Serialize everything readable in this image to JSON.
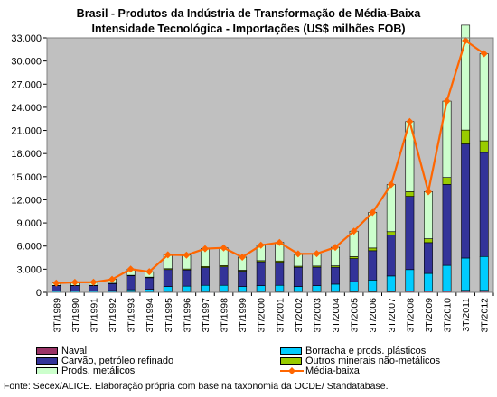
{
  "chart_data": {
    "type": "bar",
    "title": "Brasil - Produtos da Indústria de Transformação de Média-Baixa",
    "subtitle": "Intensidade Tecnológica - Importações (US$ milhões FOB)",
    "categories": [
      "3T/1989",
      "3T/1990",
      "3T/1991",
      "3T/1992",
      "3T/1993",
      "3T/1994",
      "3T/1995",
      "3T/1996",
      "3T/1997",
      "3T/1998",
      "3T/1999",
      "3T/2000",
      "3T/2001",
      "3T/2002",
      "3T/2003",
      "3T/2004",
      "3T/2005",
      "3T/2006",
      "3T/2007",
      "3T/2008",
      "3T/2009",
      "3T/2010",
      "3T/2011",
      "3T/2012"
    ],
    "y_ticks": [
      "0",
      "3.000",
      "6.000",
      "9.000",
      "12.000",
      "15.000",
      "18.000",
      "21.000",
      "24.000",
      "27.000",
      "30.000",
      "33.000"
    ],
    "ylim": [
      0,
      33000
    ],
    "stacked": true,
    "series": [
      {
        "name": "Naval",
        "color": "#993366",
        "values": [
          20,
          20,
          20,
          30,
          40,
          40,
          50,
          50,
          60,
          60,
          50,
          60,
          60,
          50,
          60,
          60,
          80,
          100,
          120,
          150,
          150,
          200,
          250,
          250
        ]
      },
      {
        "name": "Borracha e prods. plásticos",
        "color": "#00CCFF",
        "values": [
          150,
          150,
          150,
          200,
          300,
          350,
          700,
          750,
          850,
          850,
          700,
          800,
          850,
          700,
          800,
          1000,
          1300,
          1500,
          2000,
          2800,
          2300,
          3300,
          4200,
          4400
        ]
      },
      {
        "name": "Carvão, petróleo refinado",
        "color": "#333399",
        "values": [
          700,
          700,
          700,
          900,
          1800,
          1500,
          2200,
          2100,
          2300,
          2400,
          2000,
          3100,
          3000,
          2500,
          2400,
          2200,
          3000,
          3800,
          5300,
          9500,
          4000,
          10500,
          14800,
          13500
        ]
      },
      {
        "name": "Outros minerais não-metálicos",
        "color": "#99CC00",
        "values": [
          30,
          30,
          40,
          50,
          70,
          80,
          120,
          130,
          150,
          160,
          120,
          150,
          160,
          140,
          150,
          180,
          250,
          350,
          450,
          600,
          500,
          900,
          1800,
          1500
        ]
      },
      {
        "name": "Prods. metálicos",
        "color": "#CCFFCC",
        "values": [
          300,
          400,
          400,
          500,
          800,
          700,
          1800,
          1800,
          2300,
          2300,
          1700,
          2000,
          2400,
          1600,
          1600,
          2400,
          3300,
          4600,
          6100,
          9100,
          6100,
          9900,
          13600,
          11300
        ]
      }
    ],
    "line_series": {
      "name": "Média-baixa",
      "color": "#FF6600",
      "values": [
        1200,
        1300,
        1310,
        1680,
        3010,
        2670,
        4870,
        4830,
        5660,
        5770,
        4570,
        6110,
        6470,
        4990,
        5010,
        5840,
        7930,
        10350,
        13970,
        22150,
        13050,
        24800,
        32650,
        30950
      ]
    },
    "grid": false,
    "legend_position": "bottom"
  },
  "source_note": "Fonte: Secex/ALICE. Elaboração própria com base na taxonomia da OCDE/ Standatabase.",
  "legend": {
    "naval": "Naval",
    "borracha": "Borracha e prods. plásticos",
    "carvao": "Carvão, petróleo refinado",
    "outros": "Outros minerais não-metálicos",
    "metalicos": "Prods. metálicos",
    "media": "Média-baixa"
  },
  "colors": {
    "plot_bg": "#C0C0C0",
    "line": "#FF6600"
  }
}
